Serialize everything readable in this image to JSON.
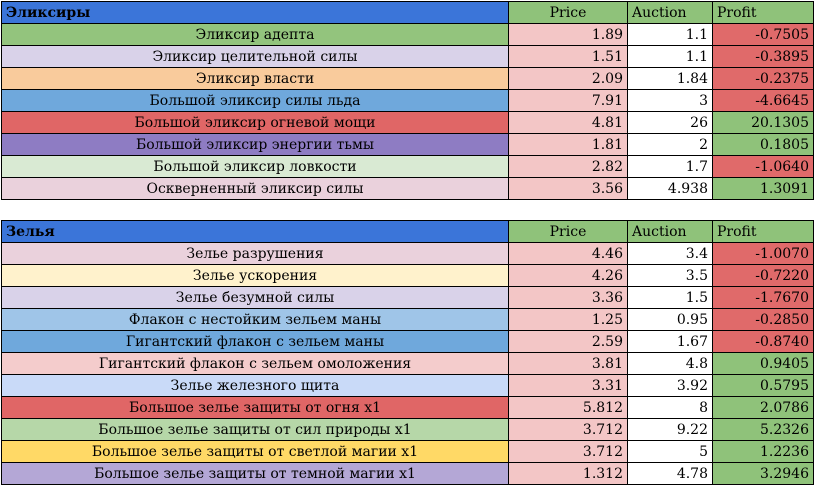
{
  "colors": {
    "header_blue": "#3b75d9",
    "header_green": "#8fc27a",
    "price_pink": "#f3c6c6",
    "loss_red": "#e06a6a",
    "profit_green": "#8fc27a"
  },
  "elixirs": {
    "title": "Эликсиры",
    "col_price": "Price",
    "col_auction": "Auction",
    "col_profit": "Profit",
    "rows": [
      {
        "name": "Эликсир адепта",
        "price": "1.89",
        "auction": "1.1",
        "profit": "-0.7505",
        "color": "#93c47d",
        "sign": "neg"
      },
      {
        "name": "Эликсир целительной силы",
        "price": "1.51",
        "auction": "1.1",
        "profit": "-0.3895",
        "color": "#d9d2e9",
        "sign": "neg"
      },
      {
        "name": "Эликсир власти",
        "price": "2.09",
        "auction": "1.84",
        "profit": "-0.2375",
        "color": "#f9cb9c",
        "sign": "neg"
      },
      {
        "name": "Большой эликсир силы льда",
        "price": "7.91",
        "auction": "3",
        "profit": "-4.6645",
        "color": "#6fa8dc",
        "sign": "neg"
      },
      {
        "name": "Большой эликсир огневой мощи",
        "price": "4.81",
        "auction": "26",
        "profit": "20.1305",
        "color": "#e06666",
        "sign": "pos"
      },
      {
        "name": "Большой эликсир энергии тьмы",
        "price": "1.81",
        "auction": "2",
        "profit": "0.1805",
        "color": "#8e7cc3",
        "sign": "pos"
      },
      {
        "name": "Большой эликсир ловкости",
        "price": "2.82",
        "auction": "1.7",
        "profit": "-1.0640",
        "color": "#d9ead3",
        "sign": "neg"
      },
      {
        "name": "Оскверненный эликсир силы",
        "price": "3.56",
        "auction": "4.938",
        "profit": "1.3091",
        "color": "#ead1dc",
        "sign": "pos"
      }
    ]
  },
  "potions": {
    "title": "Зелья",
    "col_price": "Price",
    "col_auction": "Auction",
    "col_profit": "Profit",
    "rows": [
      {
        "name": "Зелье разрушения",
        "price": "4.46",
        "auction": "3.4",
        "profit": "-1.0070",
        "color": "#ead1dc",
        "sign": "neg"
      },
      {
        "name": "Зелье ускорения",
        "price": "4.26",
        "auction": "3.5",
        "profit": "-0.7220",
        "color": "#fff2cc",
        "sign": "neg"
      },
      {
        "name": "Зелье безумной силы",
        "price": "3.36",
        "auction": "1.5",
        "profit": "-1.7670",
        "color": "#d9d2e9",
        "sign": "neg"
      },
      {
        "name": "Флакон с нестойким зельем маны",
        "price": "1.25",
        "auction": "0.95",
        "profit": "-0.2850",
        "color": "#9fc5e8",
        "sign": "neg"
      },
      {
        "name": "Гигантский флакон с зельем маны",
        "price": "2.59",
        "auction": "1.67",
        "profit": "-0.8740",
        "color": "#6fa8dc",
        "sign": "neg"
      },
      {
        "name": "Гигантский флакон с зельем омоложения",
        "price": "3.81",
        "auction": "4.8",
        "profit": "0.9405",
        "color": "#f4cccc",
        "sign": "pos"
      },
      {
        "name": "Зелье железного щита",
        "price": "3.31",
        "auction": "3.92",
        "profit": "0.5795",
        "color": "#c9daf8",
        "sign": "pos"
      },
      {
        "name": "Большое зелье защиты от огня x1",
        "price": "5.812",
        "auction": "8",
        "profit": "2.0786",
        "color": "#e06666",
        "sign": "pos"
      },
      {
        "name": "Большое зелье защиты от сил природы x1",
        "price": "3.712",
        "auction": "9.22",
        "profit": "5.2326",
        "color": "#b6d7a8",
        "sign": "pos"
      },
      {
        "name": "Большое зелье защиты от светлой магии x1",
        "price": "3.712",
        "auction": "5",
        "profit": "1.2236",
        "color": "#ffd966",
        "sign": "pos"
      },
      {
        "name": "Большое зелье защиты от темной магии x1",
        "price": "1.312",
        "auction": "4.78",
        "profit": "3.2946",
        "color": "#b4a7d6",
        "sign": "pos"
      }
    ]
  }
}
